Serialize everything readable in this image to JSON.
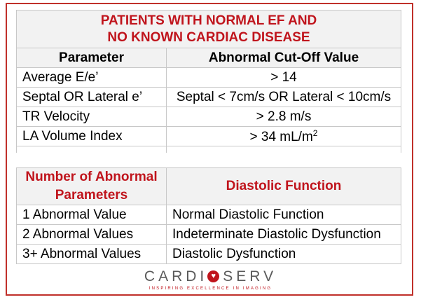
{
  "criteria_table": {
    "title_line1": "PATIENTS WITH NORMAL EF AND",
    "title_line2": "NO KNOWN CARDIAC DISEASE",
    "header_parameter": "Parameter",
    "header_cutoff": "Abnormal Cut-Off Value",
    "rows": [
      {
        "parameter": "Average E/e’",
        "value": "> 14"
      },
      {
        "parameter": "Septal OR Lateral  e’",
        "value": "Septal < 7cm/s OR Lateral < 10cm/s"
      },
      {
        "parameter": "TR Velocity",
        "value": "> 2.8 m/s"
      },
      {
        "parameter": "LA Volume Index",
        "value": "> 34 mL/m",
        "superscript": "2"
      }
    ]
  },
  "function_table": {
    "header_count_line1": "Number of Abnormal",
    "header_count_line2": "Parameters",
    "header_function": "Diastolic Function",
    "rows": [
      {
        "count": "1 Abnormal Value",
        "function": "Normal Diastolic Function"
      },
      {
        "count": "2 Abnormal Values",
        "function": "Indeterminate Diastolic Dysfunction"
      },
      {
        "count": "3+ Abnormal Values",
        "function": "Diastolic Dysfunction"
      }
    ]
  },
  "logo": {
    "brand_left": "CARDI",
    "brand_right": "SERV",
    "tagline": "INSPIRING EXCELLENCE IN IMAGING"
  },
  "colors": {
    "accent": "#c0141c",
    "border": "#c0302a",
    "header_bg": "#f2f2f2"
  }
}
